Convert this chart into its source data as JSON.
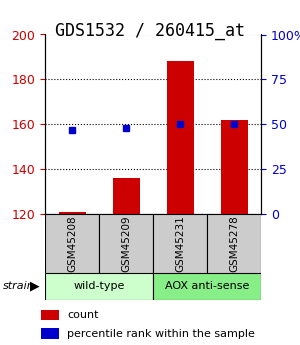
{
  "title": "GDS1532 / 260415_at",
  "samples": [
    "GSM45208",
    "GSM45209",
    "GSM45231",
    "GSM45278"
  ],
  "counts": [
    121,
    136,
    188,
    162
  ],
  "percentiles": [
    47,
    48,
    50,
    50
  ],
  "ylim_left": [
    120,
    200
  ],
  "ylim_right": [
    0,
    100
  ],
  "yticks_left": [
    120,
    140,
    160,
    180,
    200
  ],
  "yticks_right": [
    0,
    25,
    50,
    75,
    100
  ],
  "groups": [
    {
      "label": "wild-type",
      "samples": [
        0,
        1
      ],
      "color": "#ccffcc"
    },
    {
      "label": "AOX anti-sense",
      "samples": [
        2,
        3
      ],
      "color": "#88ee88"
    }
  ],
  "bar_color": "#cc0000",
  "dot_color": "#0000cc",
  "grid_color": "#000000",
  "bar_width": 0.5,
  "title_fontsize": 12,
  "tick_fontsize": 9,
  "legend_fontsize": 8,
  "sample_box_color": "#cccccc",
  "left_tick_color": "#cc0000",
  "right_tick_color": "#0000cc",
  "background_color": "#ffffff"
}
